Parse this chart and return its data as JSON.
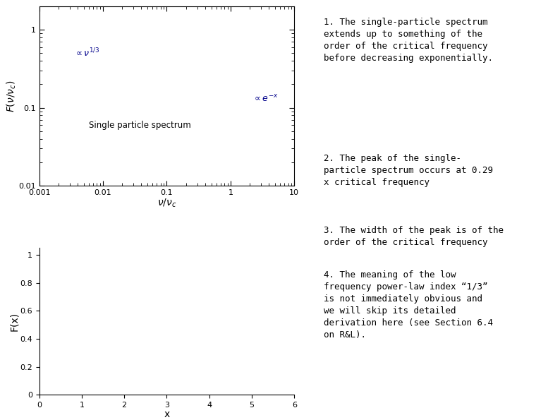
{
  "text_panel_1": "1. The single-particle spectrum\nextends up to something of the\norder of the critical frequency\nbefore decreasing exponentially.",
  "text_panel_2": "2. The peak of the single-\nparticle spectrum occurs at 0.29\nx critical frequency",
  "text_panel_3": "3. The width of the peak is of the\norder of the critical frequency",
  "text_panel_4": "4. The meaning of the low\nfrequency power-law index “1/3”\nis not immediately obvious and\nwe will skip its detailed\nderivation here (see Section 6.4\non R&L).",
  "plot1_xlabel": "$\\nu/\\nu_c$",
  "plot1_ylabel": "$F(\\nu/\\nu_c)$",
  "plot1_label": "Single particle spectrum",
  "plot1_ann1_text": "$\\propto\\nu^{1/3}$",
  "plot1_ann2_text": "$\\propto e^{-x}$",
  "plot2_xlabel": "x",
  "plot2_ylabel": "F(x)",
  "line_color": "#000000",
  "annotation_color": "#00008B",
  "bg_color": "#ffffff",
  "text_color": "#000000",
  "plot1_xlim": [
    0.001,
    10
  ],
  "plot1_ylim": [
    0.01,
    2.0
  ],
  "plot2_xlim": [
    0.0,
    6.0
  ],
  "plot2_ylim": [
    0.0,
    1.05
  ]
}
